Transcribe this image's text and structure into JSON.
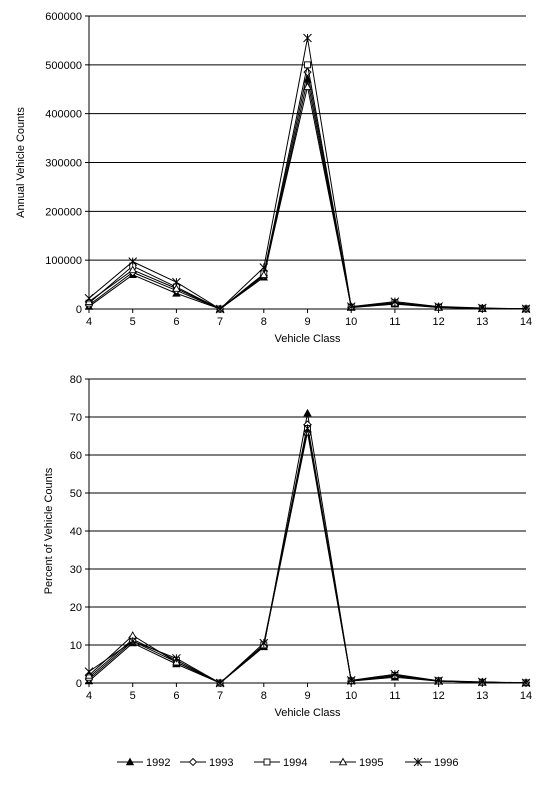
{
  "chart_data": [
    {
      "type": "line",
      "xlabel": "Vehicle Class",
      "ylabel": "Annual Vehicle Counts",
      "x": [
        4,
        5,
        6,
        7,
        8,
        9,
        10,
        11,
        12,
        13,
        14
      ],
      "ylim": [
        0,
        600000
      ],
      "yticks": [
        0,
        100000,
        200000,
        300000,
        400000,
        500000,
        600000
      ],
      "grid": true,
      "series": [
        {
          "name": "1992",
          "marker": "filled-triangle",
          "values": [
            5000,
            70000,
            32000,
            0,
            65000,
            470000,
            3000,
            10000,
            3000,
            1000,
            200
          ]
        },
        {
          "name": "1993",
          "marker": "open-diamond",
          "values": [
            8000,
            75000,
            38000,
            0,
            68000,
            485000,
            3500,
            11000,
            3500,
            1200,
            300
          ]
        },
        {
          "name": "1994",
          "marker": "open-square",
          "values": [
            12000,
            88000,
            45000,
            0,
            72000,
            500000,
            4000,
            13000,
            4000,
            1500,
            300
          ]
        },
        {
          "name": "1995",
          "marker": "open-triangle",
          "values": [
            15000,
            80000,
            42000,
            0,
            70000,
            455000,
            4500,
            12000,
            3500,
            1300,
            300
          ]
        },
        {
          "name": "1996",
          "marker": "asterisk",
          "values": [
            22000,
            97000,
            55000,
            0,
            85000,
            555000,
            5000,
            15000,
            5000,
            2000,
            400
          ]
        }
      ]
    },
    {
      "type": "line",
      "xlabel": "Vehicle Class",
      "ylabel": "Percent of Vehicle Counts",
      "x": [
        4,
        5,
        6,
        7,
        8,
        9,
        10,
        11,
        12,
        13,
        14
      ],
      "ylim": [
        0,
        80
      ],
      "yticks": [
        0,
        10,
        20,
        30,
        40,
        50,
        60,
        70,
        80
      ],
      "grid": true,
      "series": [
        {
          "name": "1992",
          "marker": "filled-triangle",
          "values": [
            0.5,
            10.5,
            5,
            0,
            9.5,
            71,
            0.5,
            1.5,
            0.5,
            0.2,
            0.05
          ]
        },
        {
          "name": "1993",
          "marker": "open-diamond",
          "values": [
            1,
            11,
            5.5,
            0,
            9.8,
            68,
            0.5,
            1.8,
            0.5,
            0.2,
            0.05
          ]
        },
        {
          "name": "1994",
          "marker": "open-square",
          "values": [
            1.5,
            11.5,
            6,
            0,
            10,
            67,
            0.6,
            2,
            0.6,
            0.2,
            0.05
          ]
        },
        {
          "name": "1995",
          "marker": "open-triangle",
          "values": [
            2,
            12.5,
            5.5,
            0,
            10,
            66,
            0.6,
            2,
            0.5,
            0.2,
            0.05
          ]
        },
        {
          "name": "1996",
          "marker": "asterisk",
          "values": [
            3,
            11,
            6.5,
            0,
            10.5,
            67,
            0.7,
            2.3,
            0.6,
            0.3,
            0.05
          ]
        }
      ]
    }
  ],
  "legend": {
    "placement": "bottom",
    "items": [
      {
        "label": "1992",
        "marker": "filled-triangle"
      },
      {
        "label": "1993",
        "marker": "open-diamond"
      },
      {
        "label": "1994",
        "marker": "open-square"
      },
      {
        "label": "1995",
        "marker": "open-triangle"
      },
      {
        "label": "1996",
        "marker": "asterisk"
      }
    ]
  }
}
